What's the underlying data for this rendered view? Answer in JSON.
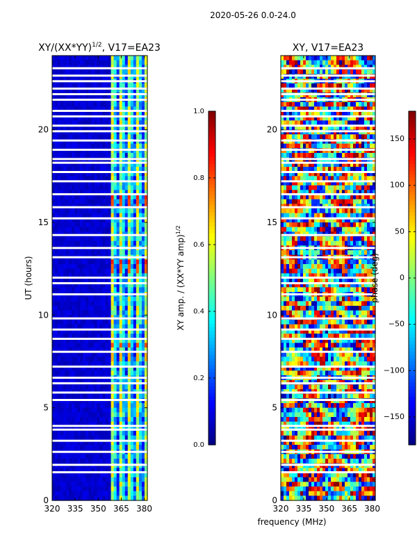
{
  "figure_title": "2020-05-26 0.0-24.0",
  "shared_xlabel": "frequency (MHz)",
  "chart_data": [
    {
      "type": "heatmap",
      "title": "XY/(XX*YY)",
      "title_sup": "1/2",
      "title_suffix": ", V17=EA23",
      "xlabel": "",
      "ylabel": "UT (hours)",
      "xlim": [
        320,
        382
      ],
      "ylim": [
        0,
        24
      ],
      "xticks": [
        "320",
        "335",
        "350",
        "365",
        "380"
      ],
      "xtick_values": [
        320,
        335,
        350,
        365,
        380
      ],
      "yticks": [
        "0",
        "5",
        "10",
        "15",
        "20"
      ],
      "ytick_values": [
        0,
        5,
        10,
        15,
        20
      ],
      "colorbar": {
        "label": "XY amp. / (XX*YY amp)",
        "label_sup": "1/2",
        "range": [
          0,
          1
        ],
        "ticks": [
          "0.0",
          "0.2",
          "0.4",
          "0.6",
          "0.8",
          "1.0"
        ],
        "tick_values": [
          0,
          0.2,
          0.4,
          0.6,
          0.8,
          1.0
        ],
        "colormap": "jet"
      },
      "typical_value_low_band": 0.05,
      "typical_value_high_band": 0.45,
      "high_band_start_mhz": 359,
      "flagged_ut_hours": [
        23.3,
        22.9,
        22.6,
        22.2,
        21.9,
        21.6,
        21.0,
        20.7,
        20.2,
        19.9,
        19.4,
        18.9,
        18.4,
        18.2,
        17.7,
        17.2,
        16.5,
        15.8,
        15.2,
        14.3,
        13.6,
        13.1,
        12.0,
        11.7,
        11.1,
        9.8,
        9.2,
        8.7,
        8.0,
        7.2,
        6.6,
        6.3,
        5.8,
        5.4,
        4.0,
        3.8,
        3.2,
        2.6,
        1.9,
        1.5
      ],
      "hot_spots": [
        {
          "ut": 16.3,
          "value": 0.85
        },
        {
          "ut": 16.0,
          "value": 0.8
        },
        {
          "ut": 12.8,
          "value": 0.85
        },
        {
          "ut": 12.5,
          "value": 0.78
        },
        {
          "ut": 8.4,
          "value": 0.8
        },
        {
          "ut": 7.7,
          "value": 0.7
        },
        {
          "ut": 5.3,
          "value": 0.65
        }
      ]
    },
    {
      "type": "heatmap",
      "title": "XY, V17=EA23",
      "xlabel": "frequency (MHz)",
      "ylabel": "",
      "xlim": [
        320,
        382
      ],
      "ylim": [
        0,
        24
      ],
      "xticks": [
        "320",
        "335",
        "350",
        "365",
        "380"
      ],
      "xtick_values": [
        320,
        335,
        350,
        365,
        380
      ],
      "yticks": [
        "0",
        "5",
        "10",
        "15",
        "20"
      ],
      "ytick_values": [
        0,
        5,
        10,
        15,
        20
      ],
      "colorbar": {
        "label": "phase (deg)",
        "range": [
          -180,
          180
        ],
        "ticks": [
          "−150",
          "−100",
          "−50",
          "0",
          "50",
          "100",
          "150"
        ],
        "tick_values": [
          -150,
          -100,
          -50,
          0,
          50,
          100,
          150
        ],
        "colormap": "jet"
      },
      "flagged_ut_hours": [
        23.3,
        22.9,
        22.6,
        22.2,
        21.9,
        21.6,
        21.0,
        20.7,
        20.2,
        19.9,
        19.4,
        18.9,
        18.4,
        18.2,
        17.7,
        17.2,
        16.5,
        15.8,
        15.2,
        14.3,
        13.6,
        13.1,
        12.0,
        11.7,
        11.1,
        9.8,
        9.2,
        8.7,
        8.0,
        7.2,
        6.6,
        6.3,
        5.8,
        5.4,
        4.0,
        3.8,
        3.2,
        2.6,
        1.9,
        1.5
      ]
    }
  ]
}
